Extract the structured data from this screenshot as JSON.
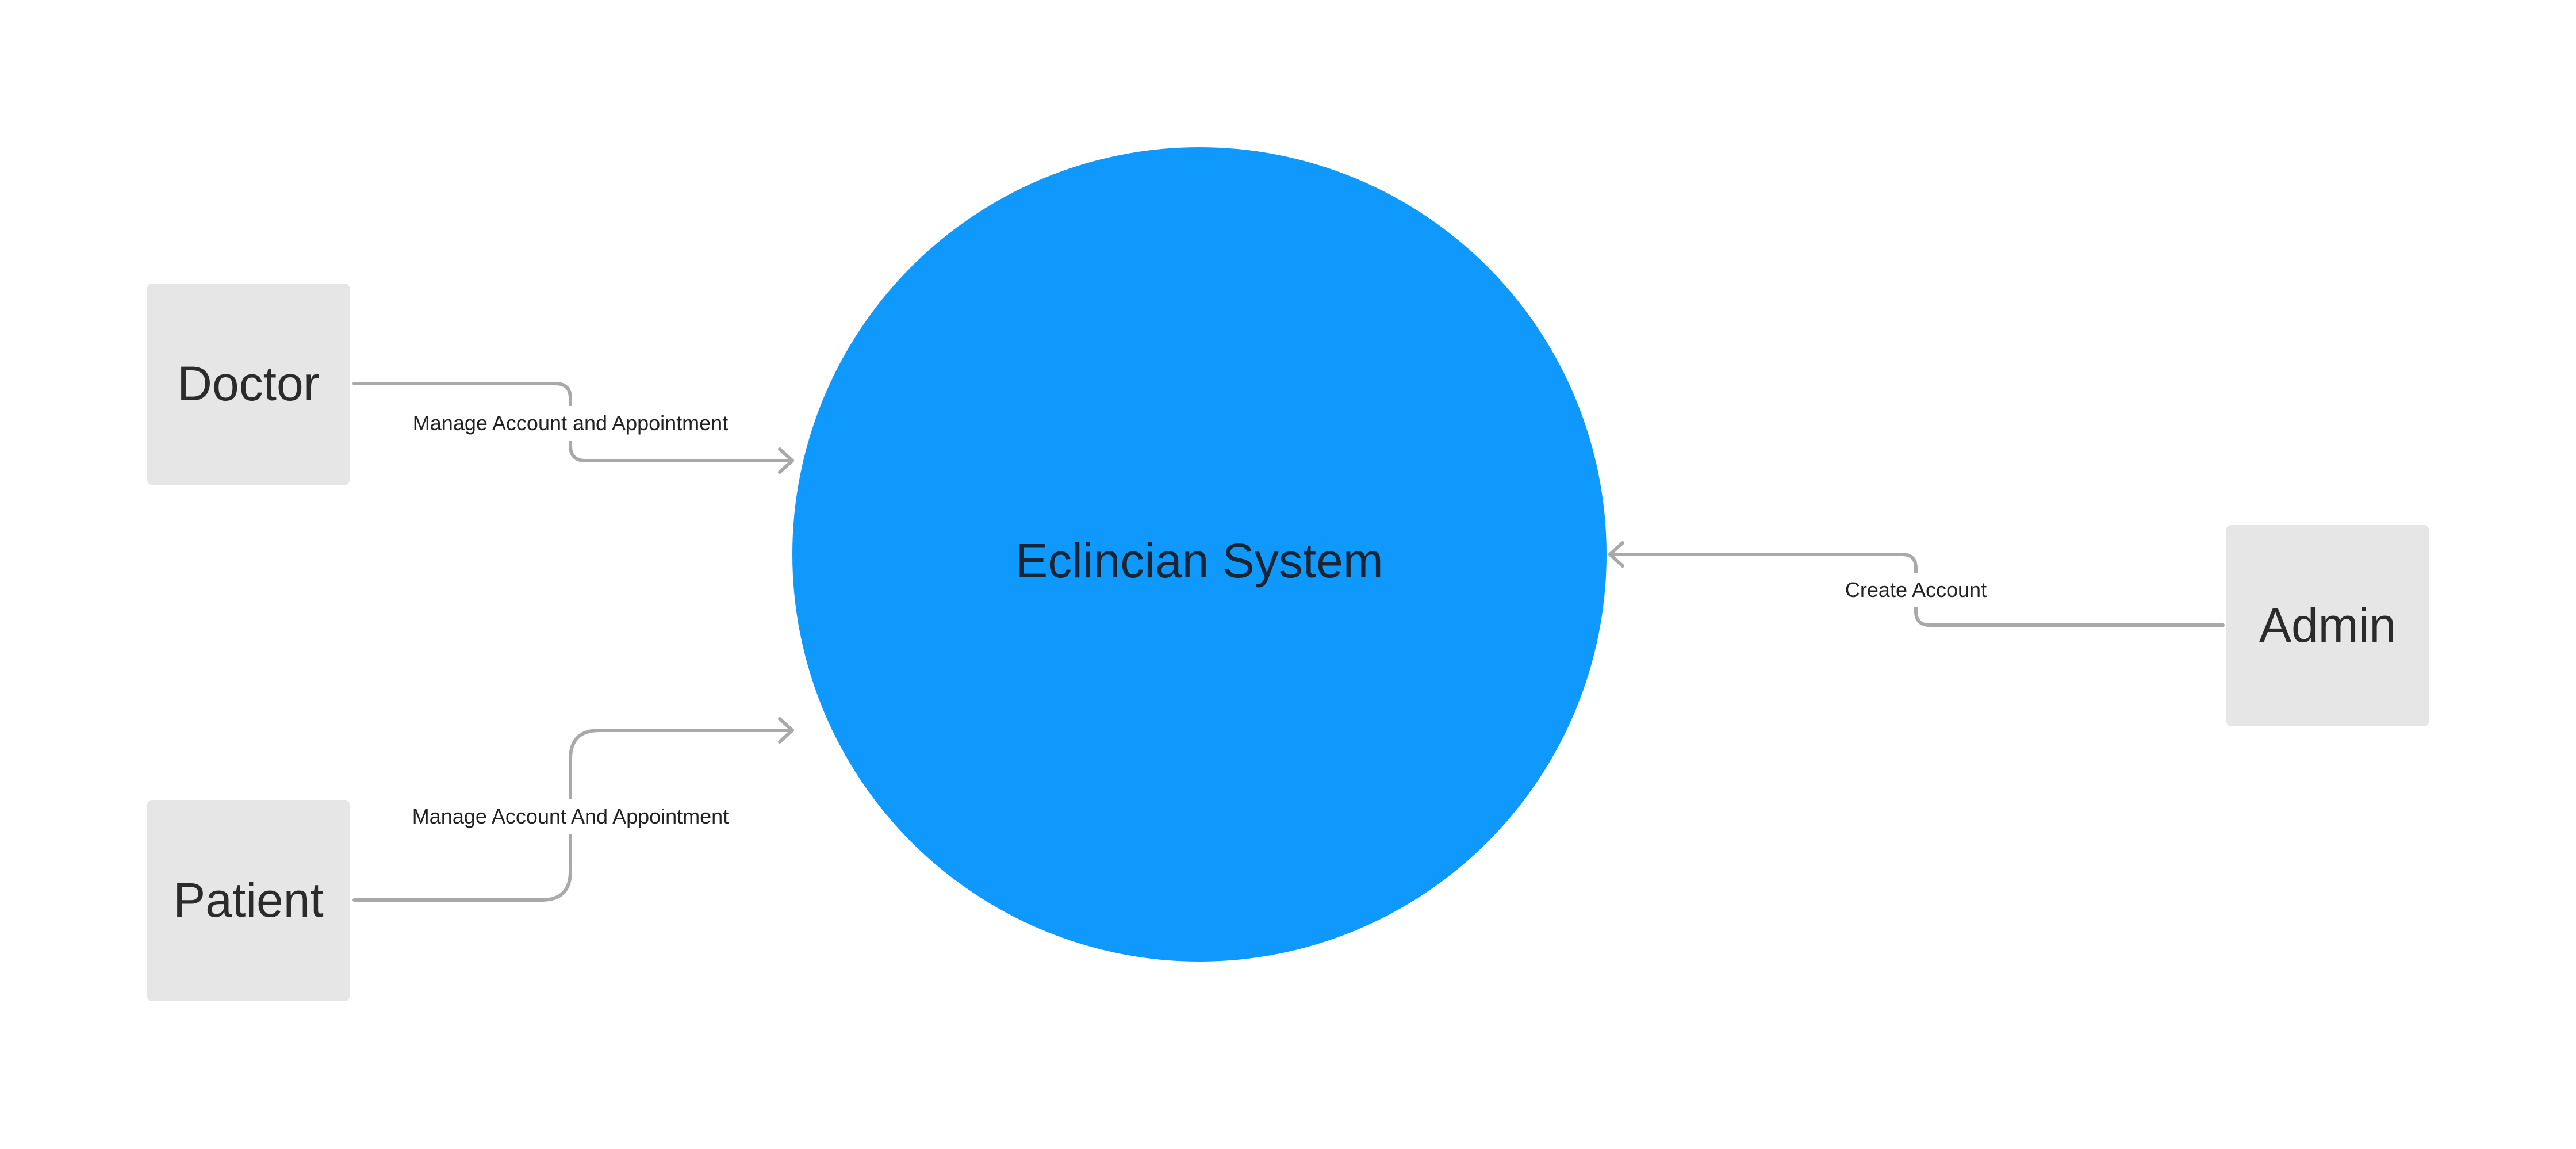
{
  "diagram": {
    "process": {
      "label": "Eclincian System",
      "color": "#1099fc"
    },
    "entities": {
      "doctor": "Doctor",
      "patient": "Patient",
      "admin": "Admin"
    },
    "flows": {
      "doctor_to_system": "Manage Account and Appointment",
      "patient_to_system": "Manage Account And Appointment",
      "admin_to_system": "Create Account"
    },
    "colors": {
      "entity_fill": "#e6e6e6",
      "connector": "#a9a9a9"
    }
  }
}
